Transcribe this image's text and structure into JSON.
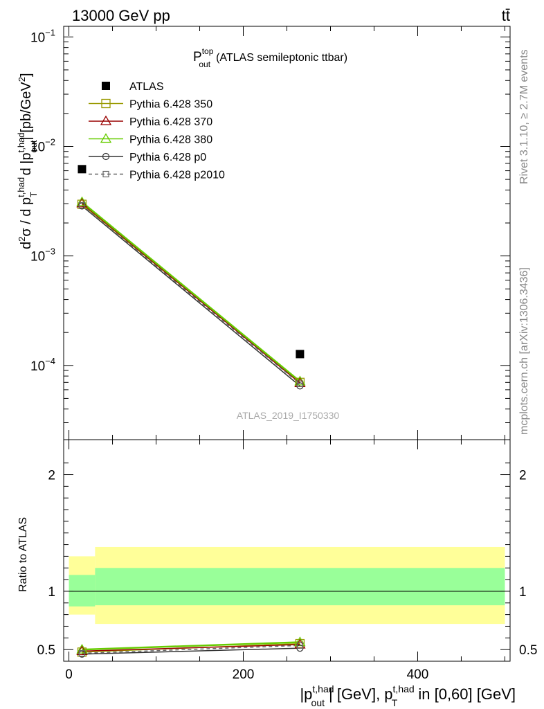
{
  "header": {
    "left": "13000 GeV pp",
    "right_base": "tt",
    "right_bar": "̄"
  },
  "side": {
    "rivet": "Rivet 3.1.10, ≥ 2.7M events",
    "mcplots": "mcplots.cern.ch [arXiv:1306.3436]"
  },
  "title": {
    "symbol": "P",
    "sup": "top",
    "sub": "out",
    "rest": "(ATLAS semileptonic ttbar)"
  },
  "watermark": "ATLAS_2019_I1750330",
  "ylabel_upper": {
    "p1": "d",
    "sup2": "2",
    "p2": "σ / d p",
    "sup_had": "t,had",
    "sub_T": "T",
    "p3": " d |p",
    "sup_had2": "t,had",
    "sub_out": "out",
    "p4": "| [pb/GeV",
    "sup_gev": "2",
    "p5": "]"
  },
  "ylabel_lower": "Ratio to ATLAS",
  "xlabel": {
    "p1": "|p",
    "sup1": "t,had",
    "sub1": "out",
    "p2": "| [GeV], p",
    "sup2": "t,had",
    "sub2": "T",
    "p3": " in [0,60] [GeV]"
  },
  "upper_ticks": [
    {
      "base": "10",
      "exp": "−1",
      "value": 0.1
    },
    {
      "base": "10",
      "exp": "−2",
      "value": 0.01
    },
    {
      "base": "10",
      "exp": "−3",
      "value": 0.001
    },
    {
      "base": "10",
      "exp": "−4",
      "value": 0.0001
    }
  ],
  "lower_ticks": [
    {
      "label": "2",
      "value": 2
    },
    {
      "label": "1",
      "value": 1
    },
    {
      "label": "0.5",
      "value": 0.5
    }
  ],
  "x_ticks": [
    {
      "label": "0",
      "value": 0
    },
    {
      "label": "200",
      "value": 200
    },
    {
      "label": "400",
      "value": 400
    }
  ],
  "legend": [
    {
      "label": "ATLAS",
      "marker": "filled-square",
      "color": "#000000",
      "dash": false
    },
    {
      "label": "Pythia 6.428 350",
      "marker": "open-square",
      "color": "#999900",
      "dash": false
    },
    {
      "label": "Pythia 6.428 370",
      "marker": "open-triangle",
      "color": "#990000",
      "dash": false
    },
    {
      "label": "Pythia 6.428 380",
      "marker": "open-triangle",
      "color": "#66cc00",
      "dash": false
    },
    {
      "label": "Pythia 6.428 p0",
      "marker": "open-circle",
      "color": "#333333",
      "dash": false
    },
    {
      "label": "Pythia 6.428 p2010",
      "marker": "open-square-small",
      "color": "#666666",
      "dash": true
    }
  ],
  "chart_data": {
    "type": "line",
    "x_scale": "linear",
    "y_scale_upper": "log",
    "xlim": [
      -6,
      506
    ],
    "ylim_upper": [
      2.1e-05,
      0.125
    ],
    "ylim_lower": [
      0.4,
      2.3
    ],
    "x": [
      15,
      265
    ],
    "data": {
      "name": "ATLAS",
      "values": [
        0.0062,
        0.000127
      ],
      "band_edges": [
        0,
        30,
        500
      ],
      "band_inner": [
        [
          0.87,
          1.14
        ],
        [
          0.88,
          1.2
        ]
      ],
      "band_outer": [
        [
          0.8,
          1.3
        ],
        [
          0.72,
          1.38
        ]
      ]
    },
    "series": [
      {
        "name": "Pythia 6.428 350",
        "values": [
          0.00296,
          7e-05
        ],
        "ratio": [
          0.478,
          0.551
        ]
      },
      {
        "name": "Pythia 6.428 370",
        "values": [
          0.00302,
          6.9e-05
        ],
        "ratio": [
          0.487,
          0.543
        ]
      },
      {
        "name": "Pythia 6.428 380",
        "values": [
          0.0031,
          7.15e-05
        ],
        "ratio": [
          0.5,
          0.563
        ]
      },
      {
        "name": "Pythia 6.428 p0",
        "values": [
          0.00286,
          6.5e-05
        ],
        "ratio": [
          0.461,
          0.512
        ]
      },
      {
        "name": "Pythia 6.428 p2010",
        "values": [
          0.0029,
          6.8e-05
        ],
        "ratio": [
          0.468,
          0.535
        ]
      }
    ]
  }
}
